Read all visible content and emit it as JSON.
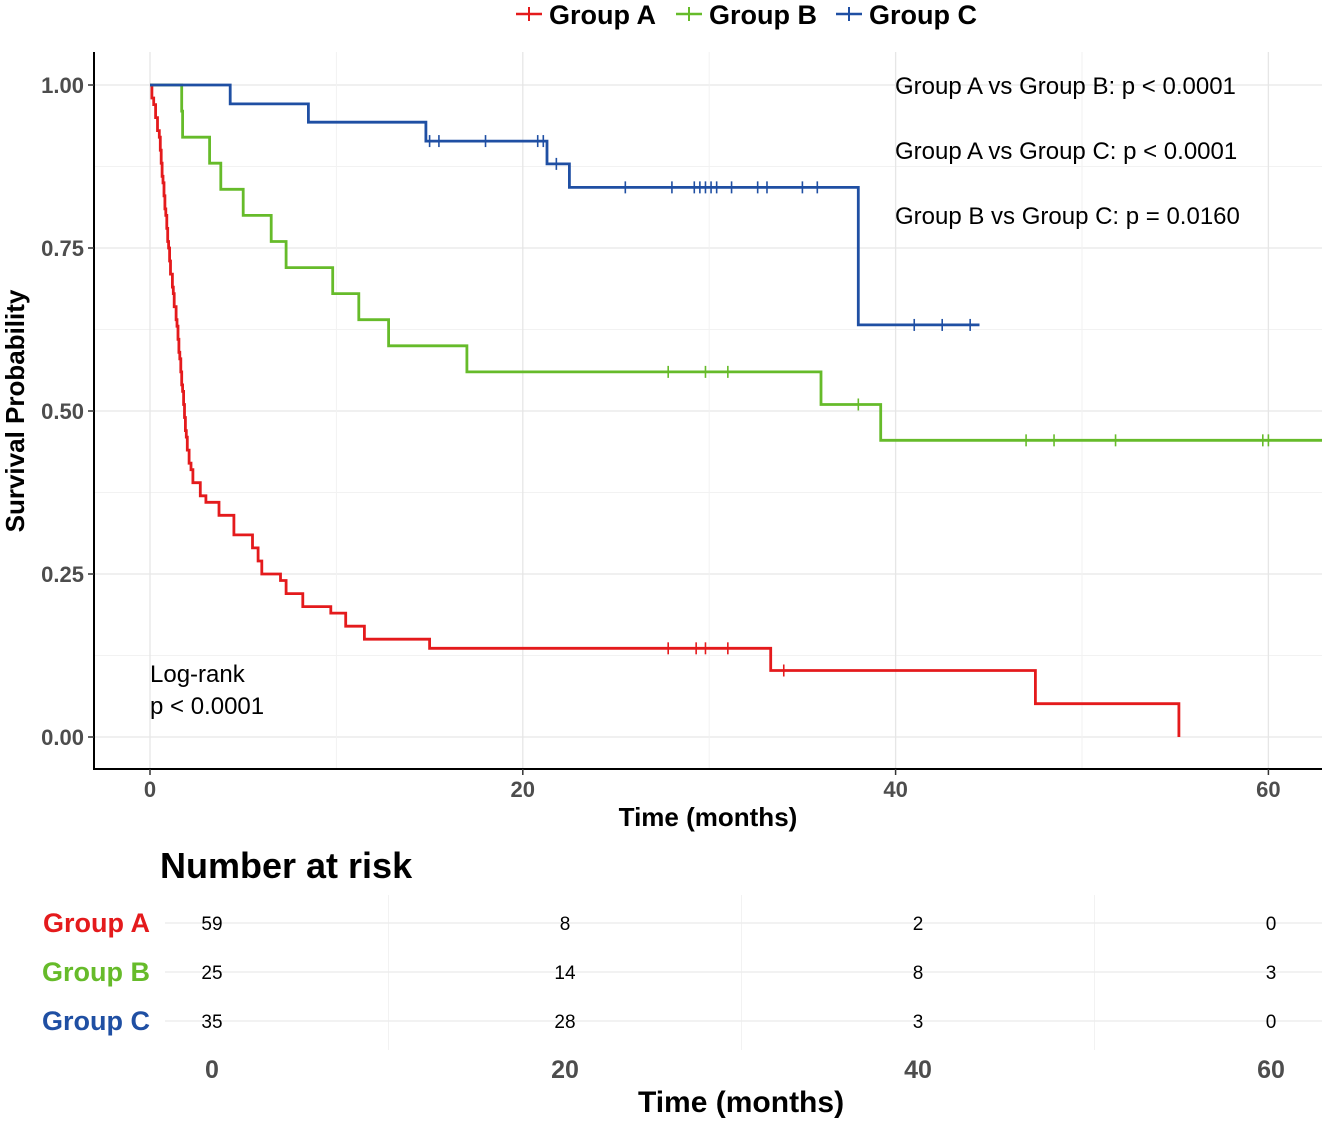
{
  "legend": {
    "items": [
      {
        "label": "Group A",
        "color": "#e41a1c"
      },
      {
        "label": "Group B",
        "color": "#66bb2a"
      },
      {
        "label": "Group C",
        "color": "#1f4fa3"
      }
    ]
  },
  "annotations": {
    "comparisons": [
      "Group A vs Group B: p < 0.0001",
      "Group A vs Group C: p < 0.0001",
      "Group B vs Group C: p = 0.0160"
    ],
    "logrank_line1": "Log-rank",
    "logrank_line2": "p < 0.0001"
  },
  "chart_data": {
    "type": "line",
    "subtype": "kaplan-meier step",
    "xlabel": "Time (months)",
    "ylabel": "Survival Probability",
    "xlim": [
      0,
      63
    ],
    "ylim": [
      0,
      1
    ],
    "x_ticks": [
      "0",
      "20",
      "40",
      "60"
    ],
    "x_tick_values": [
      0,
      20,
      40,
      60
    ],
    "y_ticks": [
      "0.00",
      "0.25",
      "0.50",
      "0.75",
      "1.00"
    ],
    "y_tick_values": [
      0,
      0.25,
      0.5,
      0.75,
      1.0
    ],
    "grid": true,
    "legend_position": "top",
    "series": [
      {
        "name": "Group A",
        "color": "#e41a1c",
        "steps": [
          [
            0,
            1.0
          ],
          [
            0.1,
            0.98
          ],
          [
            0.2,
            0.97
          ],
          [
            0.3,
            0.95
          ],
          [
            0.4,
            0.93
          ],
          [
            0.5,
            0.92
          ],
          [
            0.55,
            0.9
          ],
          [
            0.6,
            0.88
          ],
          [
            0.65,
            0.86
          ],
          [
            0.7,
            0.85
          ],
          [
            0.75,
            0.83
          ],
          [
            0.8,
            0.81
          ],
          [
            0.85,
            0.8
          ],
          [
            0.9,
            0.78
          ],
          [
            0.95,
            0.76
          ],
          [
            1.0,
            0.75
          ],
          [
            1.05,
            0.73
          ],
          [
            1.1,
            0.71
          ],
          [
            1.2,
            0.69
          ],
          [
            1.25,
            0.68
          ],
          [
            1.3,
            0.66
          ],
          [
            1.4,
            0.64
          ],
          [
            1.45,
            0.63
          ],
          [
            1.5,
            0.61
          ],
          [
            1.55,
            0.59
          ],
          [
            1.6,
            0.58
          ],
          [
            1.65,
            0.56
          ],
          [
            1.7,
            0.54
          ],
          [
            1.75,
            0.53
          ],
          [
            1.8,
            0.51
          ],
          [
            1.85,
            0.49
          ],
          [
            1.9,
            0.47
          ],
          [
            1.95,
            0.46
          ],
          [
            2.0,
            0.44
          ],
          [
            2.1,
            0.42
          ],
          [
            2.2,
            0.41
          ],
          [
            2.3,
            0.39
          ],
          [
            2.7,
            0.37
          ],
          [
            3.0,
            0.36
          ],
          [
            3.7,
            0.34
          ],
          [
            4.5,
            0.31
          ],
          [
            5.5,
            0.29
          ],
          [
            5.8,
            0.27
          ],
          [
            6.0,
            0.25
          ],
          [
            7.0,
            0.24
          ],
          [
            7.3,
            0.22
          ],
          [
            8.2,
            0.2
          ],
          [
            9.7,
            0.19
          ],
          [
            10.5,
            0.17
          ],
          [
            11.5,
            0.15
          ],
          [
            15.0,
            0.136
          ],
          [
            33.3,
            0.102
          ],
          [
            47.5,
            0.051
          ],
          [
            55.2,
            0.0
          ]
        ],
        "censored": [
          [
            27.8,
            0.136
          ],
          [
            29.3,
            0.136
          ],
          [
            29.8,
            0.136
          ],
          [
            31.0,
            0.136
          ],
          [
            34.0,
            0.102
          ]
        ]
      },
      {
        "name": "Group B",
        "color": "#66bb2a",
        "steps": [
          [
            0,
            1.0
          ],
          [
            1.7,
            0.96
          ],
          [
            1.75,
            0.92
          ],
          [
            3.2,
            0.88
          ],
          [
            3.8,
            0.84
          ],
          [
            5.0,
            0.8
          ],
          [
            6.5,
            0.76
          ],
          [
            7.3,
            0.72
          ],
          [
            9.8,
            0.68
          ],
          [
            11.2,
            0.64
          ],
          [
            12.8,
            0.6
          ],
          [
            17.0,
            0.56
          ],
          [
            36.0,
            0.51
          ],
          [
            39.2,
            0.455
          ]
        ],
        "end_x": 63,
        "censored": [
          [
            27.8,
            0.56
          ],
          [
            29.8,
            0.56
          ],
          [
            31.0,
            0.56
          ],
          [
            38.0,
            0.51
          ],
          [
            47.0,
            0.455
          ],
          [
            48.5,
            0.455
          ],
          [
            51.8,
            0.455
          ],
          [
            59.7,
            0.455
          ],
          [
            60.0,
            0.455
          ]
        ]
      },
      {
        "name": "Group C",
        "color": "#1f4fa3",
        "steps": [
          [
            0,
            1.0
          ],
          [
            4.3,
            0.971
          ],
          [
            8.5,
            0.943
          ],
          [
            14.8,
            0.914
          ],
          [
            21.3,
            0.879
          ],
          [
            22.5,
            0.843
          ],
          [
            38.0,
            0.632
          ]
        ],
        "end_x": 44.5,
        "censored": [
          [
            15.0,
            0.914
          ],
          [
            15.5,
            0.914
          ],
          [
            18.0,
            0.914
          ],
          [
            20.8,
            0.914
          ],
          [
            21.1,
            0.914
          ],
          [
            21.8,
            0.879
          ],
          [
            25.5,
            0.843
          ],
          [
            28.0,
            0.843
          ],
          [
            29.2,
            0.843
          ],
          [
            29.5,
            0.843
          ],
          [
            29.8,
            0.843
          ],
          [
            30.1,
            0.843
          ],
          [
            30.4,
            0.843
          ],
          [
            31.2,
            0.843
          ],
          [
            32.6,
            0.843
          ],
          [
            33.1,
            0.843
          ],
          [
            35.0,
            0.843
          ],
          [
            35.8,
            0.843
          ],
          [
            41.0,
            0.632
          ],
          [
            42.5,
            0.632
          ],
          [
            44.0,
            0.632
          ]
        ]
      }
    ],
    "risk_table": {
      "title": "Number at risk",
      "xlabel": "Time (months)",
      "times": [
        "0",
        "20",
        "40",
        "60"
      ],
      "rows": [
        {
          "name": "Group A",
          "color": "#e41a1c",
          "values": [
            "59",
            "8",
            "2",
            "0"
          ]
        },
        {
          "name": "Group B",
          "color": "#66bb2a",
          "values": [
            "25",
            "14",
            "8",
            "3"
          ]
        },
        {
          "name": "Group C",
          "color": "#1f4fa3",
          "values": [
            "35",
            "28",
            "3",
            "0"
          ]
        }
      ]
    }
  }
}
